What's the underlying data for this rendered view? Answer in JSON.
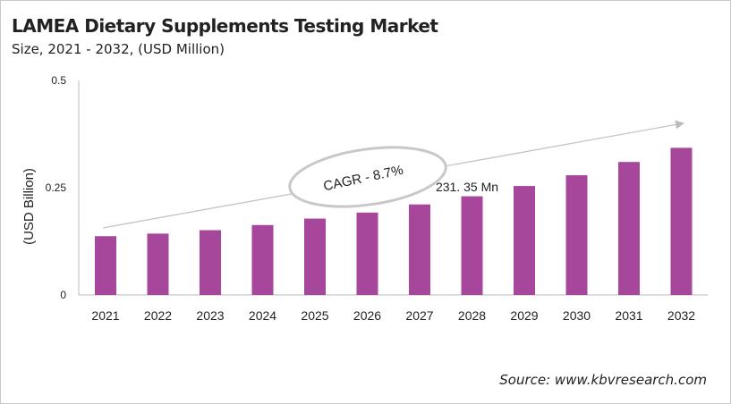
{
  "title": "LAMEA Dietary Supplements Testing Market",
  "subtitle": "Size, 2021 - 2032, (USD Million)",
  "source": "Source: www.kbvresearch.com",
  "chart_data": {
    "type": "bar",
    "categories": [
      "2021",
      "2022",
      "2023",
      "2024",
      "2025",
      "2026",
      "2027",
      "2028",
      "2029",
      "2030",
      "2031",
      "2032"
    ],
    "values": [
      0.137,
      0.143,
      0.151,
      0.163,
      0.178,
      0.192,
      0.211,
      0.23,
      0.254,
      0.279,
      0.31,
      0.343
    ],
    "ylabel": "(USD Billion)",
    "ylim": [
      0,
      0.5
    ],
    "yticks": [
      "0",
      "0.25",
      "0.5"
    ],
    "grid": false,
    "bar_color": "#a6479c",
    "annotations": {
      "cagr": "CAGR - 8.7%",
      "value_label": "231. 35 Mn"
    }
  }
}
